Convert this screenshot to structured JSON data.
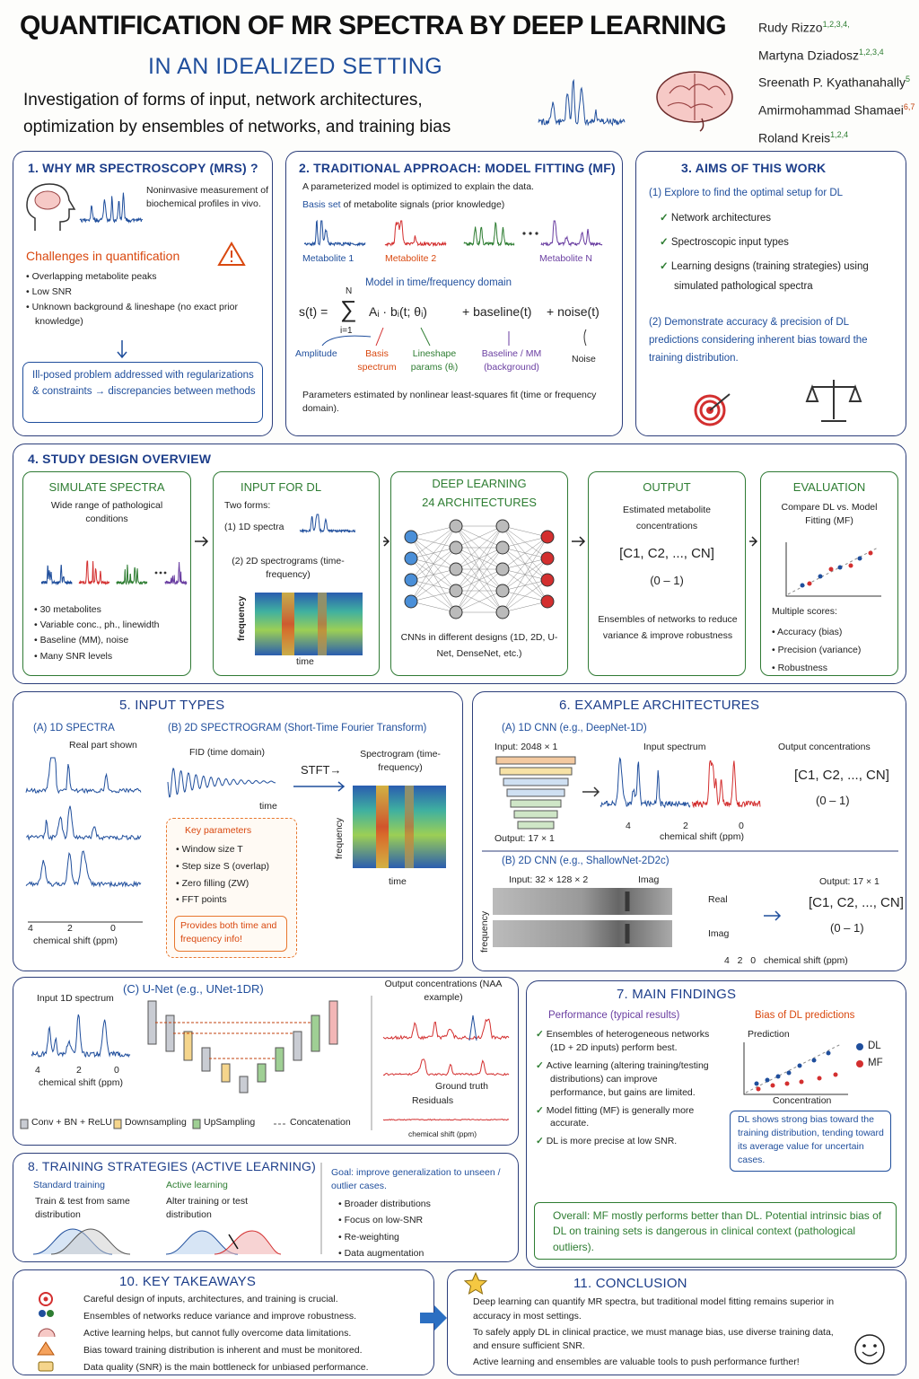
{
  "header": {
    "title": "QUANTIFICATION OF MR SPECTRA BY DEEP LEARNING",
    "subtitle": "IN AN IDEALIZED SETTING",
    "description": [
      "Investigation of forms of input, network architectures,",
      "optimization by ensembles of networks, and training bias"
    ],
    "authors": [
      {
        "name": "Rudy Rizzo",
        "affiliations": "1,2,3,4,"
      },
      {
        "name": "Martyna Dziadosz",
        "affiliations": "1,2,3,4"
      },
      {
        "name": "Sreenath P. Kyathanahally",
        "affiliations": "5"
      },
      {
        "name": "Amirmohammad Shamaei",
        "affiliations": "6,7"
      },
      {
        "name": "Roland Kreis",
        "affiliations": "1,2,4"
      }
    ]
  },
  "s1": {
    "title": "1. WHY MR SPECTROSCOPY (MRS) ?",
    "intro": "Noninvasive measurement of biochemical profiles in vivo.",
    "challenges_title": "Challenges in quantification",
    "challenges": [
      "Overlapping metabolite peaks",
      "Low SNR",
      "Unknown background & lineshape (no exact prior knowledge)"
    ],
    "note": "Ill-posed problem addressed with regularizations & constraints → discrepancies between methods"
  },
  "s2": {
    "title": "2. TRADITIONAL APPROACH: MODEL FITTING (MF)",
    "line1": "A parameterized model is optimized to explain the data.",
    "basis_term": "Basis set",
    "basis_rest": "of metabolite signals (prior knowledge)",
    "metabolites": [
      "Metabolite 1",
      "Metabolite 2",
      "Metabolite N"
    ],
    "model_title": "Model in time/frequency domain",
    "equation": {
      "lhs": "s(t) =",
      "sum": "∑",
      "upper": "N",
      "lower": "i=1",
      "term": "Aᵢ · bᵢ(t; θᵢ)",
      "baseline": "+ baseline(t)",
      "noise": "+ noise(t)"
    },
    "labels": [
      "Amplitude",
      "Basis spectrum",
      "Lineshape params (θᵢ)",
      "Baseline / MM (background)",
      "Noise"
    ],
    "footer": "Parameters estimated by nonlinear least-squares fit (time or frequency domain)."
  },
  "s3": {
    "title": "3. AIMS OF THIS WORK",
    "aim1": "(1) Explore to find the optimal setup for DL",
    "checks": [
      "Network architectures",
      "Spectroscopic input types",
      "Learning designs (training strategies) using simulated pathological spectra"
    ],
    "aim2": "(2) Demonstrate accuracy & precision of DL predictions considering inherent bias toward the training distribution."
  },
  "s4": {
    "title": "4. STUDY DESIGN OVERVIEW",
    "simulate": {
      "title": "SIMULATE SPECTRA",
      "text": "Wide range of pathological conditions",
      "bullets": [
        "30 metabolites",
        "Variable conc., ph., linewidth",
        "Baseline (MM), noise",
        "Many SNR levels"
      ]
    },
    "input": {
      "title": "INPUT FOR DL",
      "forms": "Two forms:",
      "form1": "(1) 1D spectra",
      "form2": "(2) 2D spectrograms (time-frequency)",
      "y_axis": "frequency",
      "x_axis": "time"
    },
    "dl": {
      "title_lines": [
        "DEEP LEARNING",
        "24 ARCHITECTURES"
      ],
      "caption": "CNNs in different designs (1D, 2D, U-Net, DenseNet, etc.)"
    },
    "output": {
      "title": "OUTPUT",
      "text": "Estimated metabolite concentrations",
      "vector": "[C1, C2, ..., CN]",
      "range": "(0 – 1)",
      "ensembles": "Ensembles of networks to reduce variance & improve robustness"
    },
    "evaluation": {
      "title": "EVALUATION",
      "text": "Compare DL vs. Model Fitting (MF)",
      "scores": "Multiple scores:",
      "bullets": [
        "Accuracy (bias)",
        "Precision (variance)",
        "Robustness"
      ]
    }
  },
  "s5": {
    "title": "5. INPUT TYPES",
    "a_title": "(A) 1D SPECTRA",
    "a_note": "Real part shown",
    "ticks": [
      "4",
      "2",
      "0"
    ],
    "axis": "chemical shift (ppm)",
    "b_title": "(B) 2D SPECTROGRAM (Short-Time Fourier Transform)",
    "fid": "FID (time domain)",
    "fid_axis": "time",
    "stft": "STFT→",
    "spectrogram": "Spectrogram (time-frequency)",
    "spec_y": "frequency",
    "spec_x": "time",
    "params_title": "Key parameters",
    "params": [
      "Window size T",
      "Step size S (overlap)",
      "Zero filling (ZW)",
      "FFT points"
    ],
    "params_note": "Provides both time and frequency info!"
  },
  "s6": {
    "title": "6. EXAMPLE ARCHITECTURES",
    "a_title": "(A) 1D CNN (e.g., DeepNet-1D)",
    "a_input": "Input: 2048 × 1",
    "a_output": "Output: 17 × 1",
    "a_spectrum": "Input spectrum",
    "a_conc": "Output concentrations",
    "a_vector": "[C1, C2, ..., CN]",
    "a_range": "(0 – 1)",
    "ticks": [
      "4",
      "2",
      "0"
    ],
    "axis": "chemical shift (ppm)",
    "b_title": "(B) 2D CNN (e.g., ShallowNet-2D2c)",
    "b_input": "Input: 32 × 128 × 2",
    "b_imag_top": "Imag",
    "b_real": "Real",
    "b_imag": "Imag",
    "b_freq": "frequency",
    "b_output": "Output: 17 × 1",
    "b_vector": "[C1, C2, ..., CN]",
    "b_range": "(0 – 1)"
  },
  "unet": {
    "title": "(C) U-Net (e.g., UNet-1DR)",
    "input": "Input 1D spectrum",
    "ticks": [
      "4",
      "2",
      "0"
    ],
    "axis": "chemical shift (ppm)",
    "legend": [
      "Conv + BN + ReLU",
      "Downsampling",
      "UpSampling",
      "Concatenation"
    ],
    "output_title": "Output concentrations (NAA example)",
    "ground_truth": "Ground truth",
    "residuals": "Residuals",
    "out_axis": "chemical shift (ppm)"
  },
  "s7": {
    "title": "7. MAIN FINDINGS",
    "perf_title": "Performance (typical results)",
    "checks": [
      "Ensembles of heterogeneous networks (1D + 2D inputs) perform best.",
      "Active learning (altering training/testing distributions) can improve performance, but gains are limited.",
      "Model fitting (MF) is generally more accurate.",
      "DL is more precise at low SNR."
    ],
    "bias_title": "Bias of DL predictions",
    "y_axis": "Prediction",
    "x_axis": "Concentration",
    "legend": [
      "DL",
      "MF"
    ],
    "bias_note": "DL shows strong bias toward the training distribution, tending toward its average value for uncertain cases.",
    "overall": "Overall: MF mostly performs better than DL. Potential intrinsic bias of DL on training sets is dangerous in clinical context (pathological outliers)."
  },
  "s8": {
    "title": "8. TRAINING STRATEGIES (ACTIVE LEARNING)",
    "standard_title": "Standard training",
    "standard_text": "Train & test from same distribution",
    "active_title": "Active learning",
    "active_text": "Alter training or test distribution",
    "goal": "Goal: improve generalization to unseen / outlier cases.",
    "bullets": [
      "Broader distributions",
      "Focus on low-SNR",
      "Re-weighting",
      "Data augmentation"
    ]
  },
  "s10": {
    "title": "10. KEY TAKEAWAYS",
    "items": [
      "Careful design of inputs, architectures, and training is crucial.",
      "Ensembles of networks reduce variance and improve robustness.",
      "Active learning helps, but cannot fully overcome data limitations.",
      "Bias toward training distribution is inherent and must be monitored.",
      "Data quality (SNR) is the main bottleneck for unbiased performance."
    ]
  },
  "s11": {
    "title": "11. CONCLUSION",
    "paragraphs": [
      "Deep learning can quantify MR spectra, but traditional model fitting remains superior in accuracy in most settings.",
      "To safely apply DL in clinical practice, we must manage bias, use diverse training data, and ensure sufficient SNR.",
      "Active learning and ensembles are valuable tools to push performance further!"
    ]
  }
}
